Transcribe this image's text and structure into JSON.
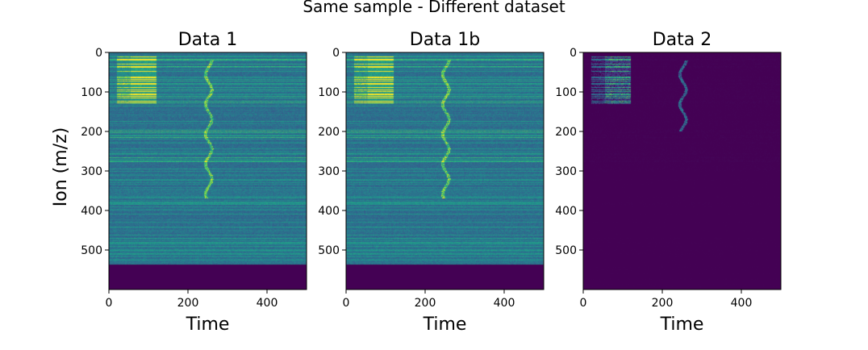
{
  "figure": {
    "suptitle": "Same sample - Different dataset",
    "colors": {
      "fill_value": "#440154",
      "high": "#fde725",
      "mid": "#21918c",
      "base": "#31688e"
    }
  },
  "chart_data": [
    {
      "type": "heatmap",
      "title": "Data 1",
      "xlabel": "Time",
      "ylabel": "Ion (m/z)",
      "xlim": [
        0,
        500
      ],
      "ylim": [
        600,
        0
      ],
      "xticks": [
        "0",
        "200",
        "400"
      ],
      "yticks": [
        "0",
        "100",
        "200",
        "300",
        "400",
        "500"
      ],
      "colormap": "viridis",
      "data_rows": 537,
      "empty_region_from": 537,
      "bright_band_time": [
        20,
        120
      ],
      "bright_band_ions": [
        10,
        130
      ],
      "ridge_time": [
        240,
        265
      ],
      "ridge_ions": [
        20,
        370
      ],
      "background_level": 0.3
    },
    {
      "type": "heatmap",
      "title": "Data 1b",
      "xlabel": "Time",
      "ylabel": "",
      "xlim": [
        0,
        500
      ],
      "ylim": [
        600,
        0
      ],
      "xticks": [
        "0",
        "200",
        "400"
      ],
      "yticks": [
        "0",
        "100",
        "200",
        "300",
        "400",
        "500"
      ],
      "colormap": "viridis",
      "data_rows": 537,
      "empty_region_from": 537,
      "bright_band_time": [
        20,
        120
      ],
      "bright_band_ions": [
        10,
        130
      ],
      "ridge_time": [
        240,
        265
      ],
      "ridge_ions": [
        20,
        370
      ],
      "background_level": 0.3
    },
    {
      "type": "heatmap",
      "title": "Data 2",
      "xlabel": "Time",
      "ylabel": "",
      "xlim": [
        0,
        500
      ],
      "ylim": [
        600,
        0
      ],
      "xticks": [
        "0",
        "200",
        "400"
      ],
      "yticks": [
        "0",
        "100",
        "200",
        "300",
        "400",
        "500"
      ],
      "colormap": "viridis",
      "data_rows": 600,
      "empty_region_from": 600,
      "bright_band_time": [
        20,
        120
      ],
      "bright_band_ions": [
        10,
        130
      ],
      "ridge_time": [
        240,
        265
      ],
      "ridge_ions": [
        20,
        200
      ],
      "background_level": 0.0
    }
  ]
}
